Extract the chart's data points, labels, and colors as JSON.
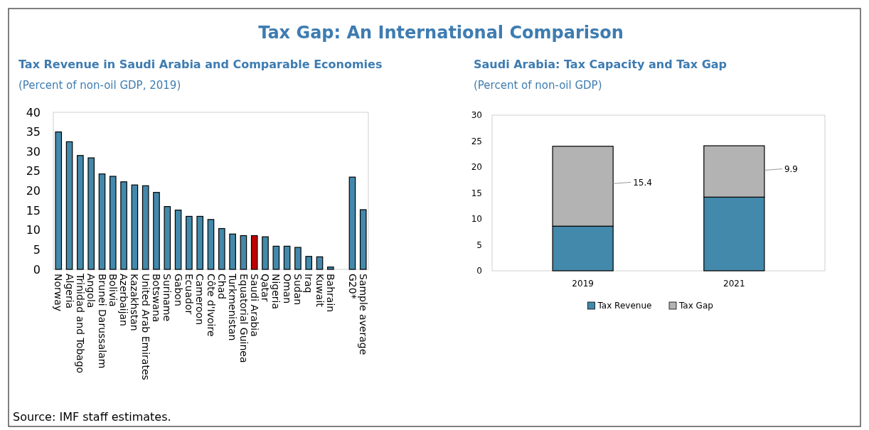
{
  "chart_data": [
    {
      "type": "bar",
      "title": "Tax Revenue in Saudi Arabia and Comparable Economies",
      "subtitle": "(Percent of non-oil GDP, 2019)",
      "annotations": [
        "Tax Gap: An International Comparison",
        "Source: IMF staff estimates."
      ],
      "categories": [
        "Norway",
        "Algeria",
        "Trinidad and Tobago",
        "Angola",
        "Brunei Darussalam",
        "Bolivia",
        "Azerbaijan",
        "Kazakhstan",
        "United Arab Emirates",
        "Botswana",
        "Suriname",
        "Gabon",
        "Ecuador",
        "Cameroon",
        "Côte d'Ivoire",
        "Chad",
        "Turkmenistan",
        "Equatorial Guinea",
        "Saudi Arabia",
        "Qatar",
        "Nigeria",
        "Oman",
        "Sudan",
        "Iraq",
        "Kuwait",
        "Bahrain",
        null,
        "G20*",
        "Sample average"
      ],
      "values": [
        35,
        32.5,
        29,
        28.4,
        24.3,
        23.7,
        22.3,
        21.5,
        21.3,
        19.6,
        16,
        15.1,
        13.5,
        13.5,
        12.7,
        10.4,
        9,
        8.6,
        8.6,
        8.3,
        5.9,
        5.9,
        5.6,
        3.3,
        3.2,
        0.6,
        null,
        23.5,
        15.2
      ],
      "colors": [
        "#4389ab",
        "#4389ab",
        "#4389ab",
        "#4389ab",
        "#4389ab",
        "#4389ab",
        "#4389ab",
        "#4389ab",
        "#4389ab",
        "#4389ab",
        "#4389ab",
        "#4389ab",
        "#4389ab",
        "#4389ab",
        "#4389ab",
        "#4389ab",
        "#4389ab",
        "#4389ab",
        "#c00000",
        "#4389ab",
        "#4389ab",
        "#4389ab",
        "#4389ab",
        "#4389ab",
        "#4389ab",
        "#4389ab",
        "#4389ab",
        "#4389ab",
        "#4389ab"
      ],
      "ylim": [
        0,
        40
      ],
      "yticks": [
        0,
        5,
        10,
        15,
        20,
        25,
        30,
        35,
        40
      ],
      "grid": false,
      "legend": false
    },
    {
      "type": "bar",
      "title": "Saudi Arabia: Tax Capacity and Tax Gap",
      "subtitle": "(Percent of non-oil GDP)",
      "stacked": true,
      "categories": [
        "2019",
        "2021"
      ],
      "series": [
        {
          "name": "Tax Revenue",
          "color": "#4389ab",
          "values": [
            8.6,
            14.2
          ]
        },
        {
          "name": "Tax Gap",
          "color": "#b3b3b3",
          "values": [
            15.4,
            9.9
          ],
          "value_labels": [
            "15.4",
            "9.9"
          ]
        }
      ],
      "ylim": [
        0,
        30
      ],
      "yticks": [
        0,
        5,
        10,
        15,
        20,
        25,
        30
      ],
      "grid": false,
      "legend": "bottom"
    }
  ]
}
